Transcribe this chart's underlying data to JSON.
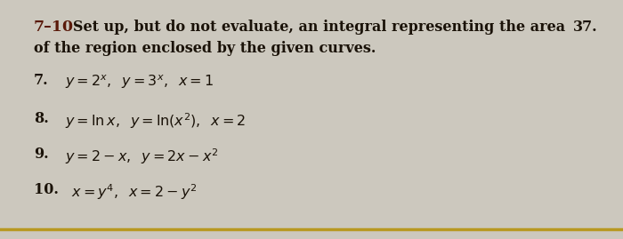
{
  "background_color": "#ccc8be",
  "text_color": "#1a1208",
  "bold_number_color": "#5a1a0a",
  "bottom_line_color": "#b89820",
  "side_number": "37.",
  "header_bold": "7-10",
  "header_rest": "  Set up, but do not evaluate, an integral representing the area",
  "header_line2": "of the region enclosed by the given curves.",
  "items": [
    {
      "number": "7.",
      "formula": "$y = 2^x,\\;\\; y = 3^x,\\;\\; x = 1$"
    },
    {
      "number": "8.",
      "formula": "$y = \\ln x,\\;\\; y = \\ln(x^2),\\;\\; x = 2$"
    },
    {
      "number": "9.",
      "formula": "$y = 2 - x,\\;\\; y = 2x - x^2$"
    },
    {
      "number": "10.",
      "formula": "$x = y^4,\\;\\; x = 2 - y^2$"
    }
  ],
  "figsize": [
    7.0,
    2.69
  ],
  "dpi": 100
}
